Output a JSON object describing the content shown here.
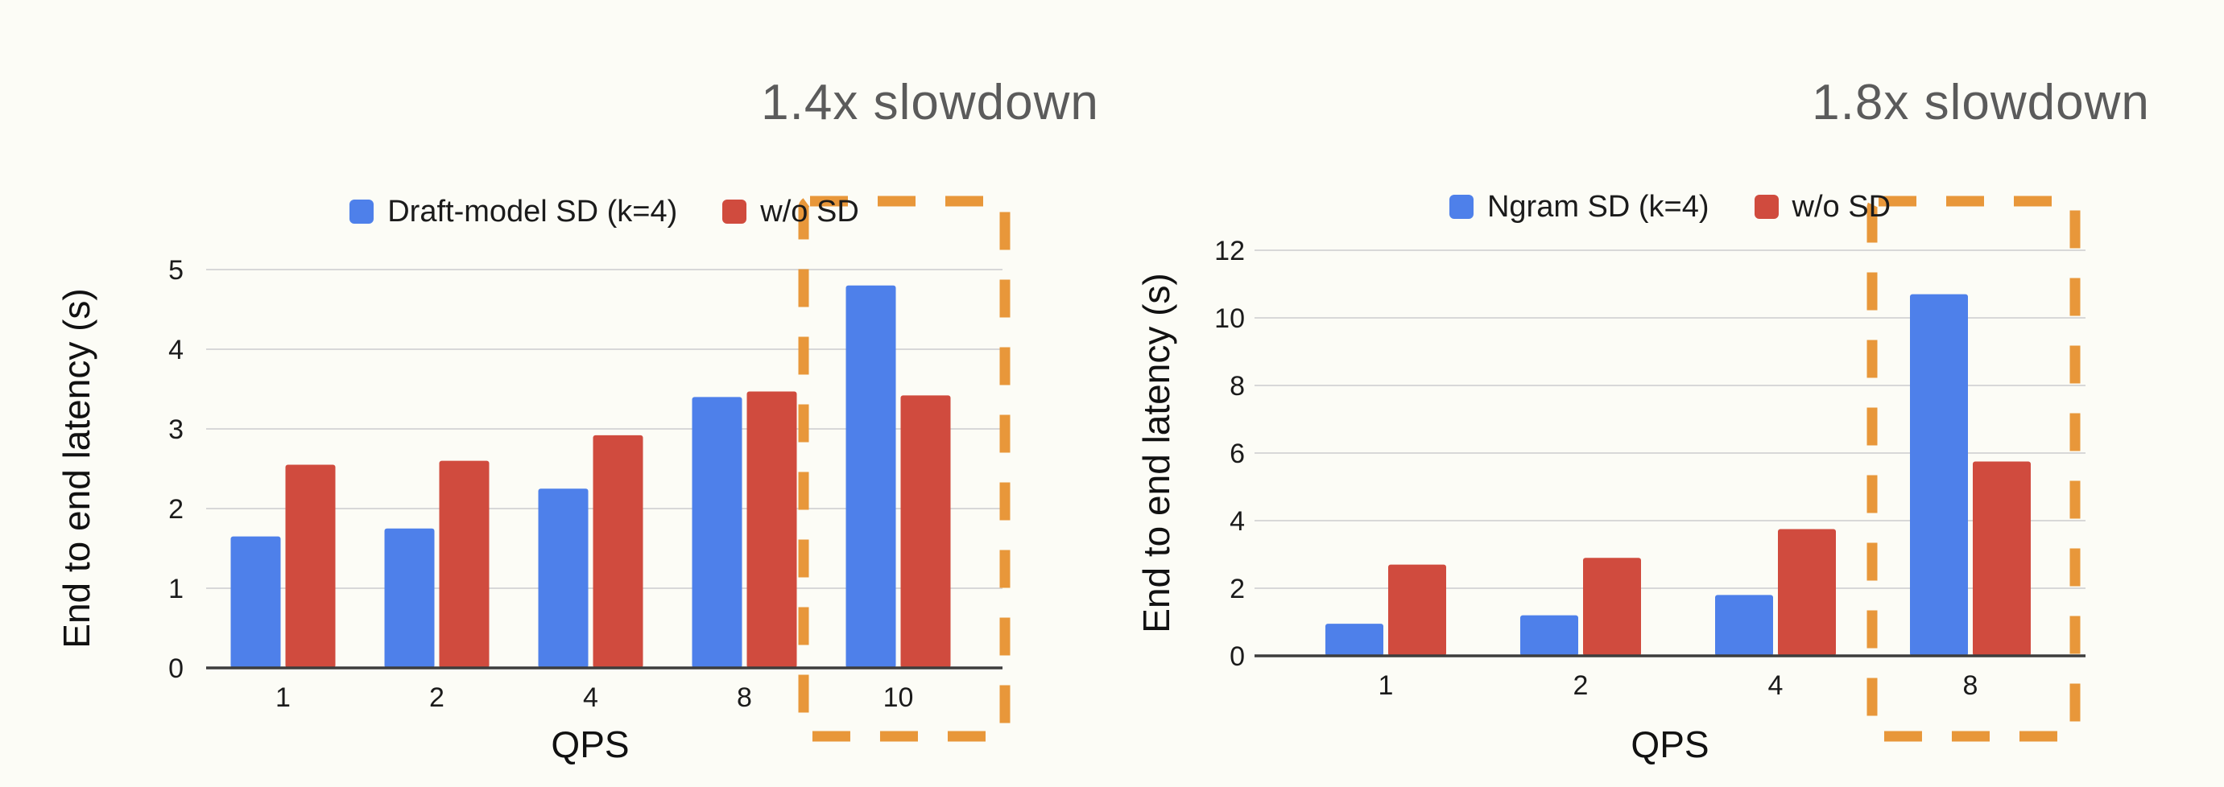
{
  "slide": {
    "background": "#fcfcf6"
  },
  "colors": {
    "blue": "#4e80ea",
    "red": "#d04b3e",
    "accent_orange": "#e8973a",
    "annotation_gray": "#5b5b5b",
    "gridline_gray": "#d8d8d8",
    "axis_dark": "#3d3d3d"
  },
  "chart_data": [
    {
      "type": "bar",
      "annotation": "1.4x slowdown",
      "ylabel": "End to end latency (s)",
      "xlabel": "QPS",
      "categories": [
        "1",
        "2",
        "4",
        "8",
        "10"
      ],
      "series": [
        {
          "name": "Draft-model SD (k=4)",
          "color": "blue",
          "values": [
            1.65,
            1.75,
            2.25,
            3.4,
            4.8
          ]
        },
        {
          "name": "w/o SD",
          "color": "red",
          "values": [
            2.55,
            2.6,
            2.92,
            3.47,
            3.42
          ]
        }
      ],
      "ylim": [
        0,
        5
      ],
      "ytick_step": 1,
      "grid": true,
      "legend_position": "top",
      "highlight_category": "10"
    },
    {
      "type": "bar",
      "annotation": "1.8x slowdown",
      "ylabel": "End to end latency (s)",
      "xlabel": "QPS",
      "categories": [
        "1",
        "2",
        "4",
        "8"
      ],
      "series": [
        {
          "name": "Ngram SD (k=4)",
          "color": "blue",
          "values": [
            0.95,
            1.2,
            1.8,
            10.7
          ]
        },
        {
          "name": "w/o SD",
          "color": "red",
          "values": [
            2.7,
            2.9,
            3.75,
            5.75
          ]
        }
      ],
      "ylim": [
        0,
        12
      ],
      "ytick_step": 2,
      "grid": true,
      "legend_position": "top",
      "highlight_category": "8"
    }
  ]
}
